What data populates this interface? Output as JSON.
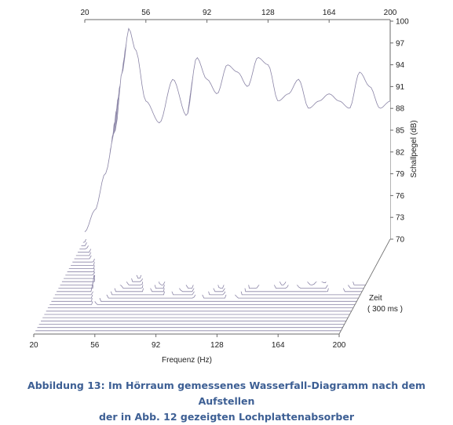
{
  "chart_data": {
    "type": "waterfall",
    "description_visible": "3D waterfall (cumulative spectral decay) plot",
    "x_axis": {
      "label": "Frequenz (Hz)",
      "ticks": [
        "20",
        "56",
        "92",
        "128",
        "164",
        "200"
      ],
      "range": [
        20,
        200
      ]
    },
    "y_axis": {
      "label": "Schallpegel (dB)",
      "ticks": [
        "70",
        "73",
        "76",
        "79",
        "82",
        "85",
        "88",
        "91",
        "94",
        "97",
        "100"
      ],
      "range": [
        70,
        100
      ]
    },
    "z_axis": {
      "label_line1": "Zeit",
      "label_line2": "( 300 ms )"
    },
    "slices": 30,
    "colors": {
      "curves": "#8a84a6",
      "axes": "#6a6a6a",
      "text": "#222222"
    },
    "initial_spectrum": {
      "freq": [
        20,
        26,
        32,
        38,
        42,
        46,
        50,
        56,
        64,
        72,
        80,
        86,
        92,
        98,
        104,
        110,
        116,
        122,
        128,
        134,
        140,
        146,
        152,
        158,
        164,
        170,
        176,
        182,
        188,
        194,
        200
      ],
      "level": [
        71,
        74,
        79,
        85,
        93,
        99,
        96,
        89,
        86,
        92,
        87,
        95,
        92,
        90,
        94,
        93,
        91,
        95,
        94,
        89,
        90,
        92,
        88,
        89,
        90,
        89,
        88,
        93,
        91,
        88,
        89
      ]
    }
  },
  "caption": {
    "line1": "Abbildung 13: Im Hörraum gemessenes Wasserfall-Diagramm nach dem Aufstellen",
    "line2": "der in Abb. 12 gezeigten Lochplattenabsorber"
  }
}
